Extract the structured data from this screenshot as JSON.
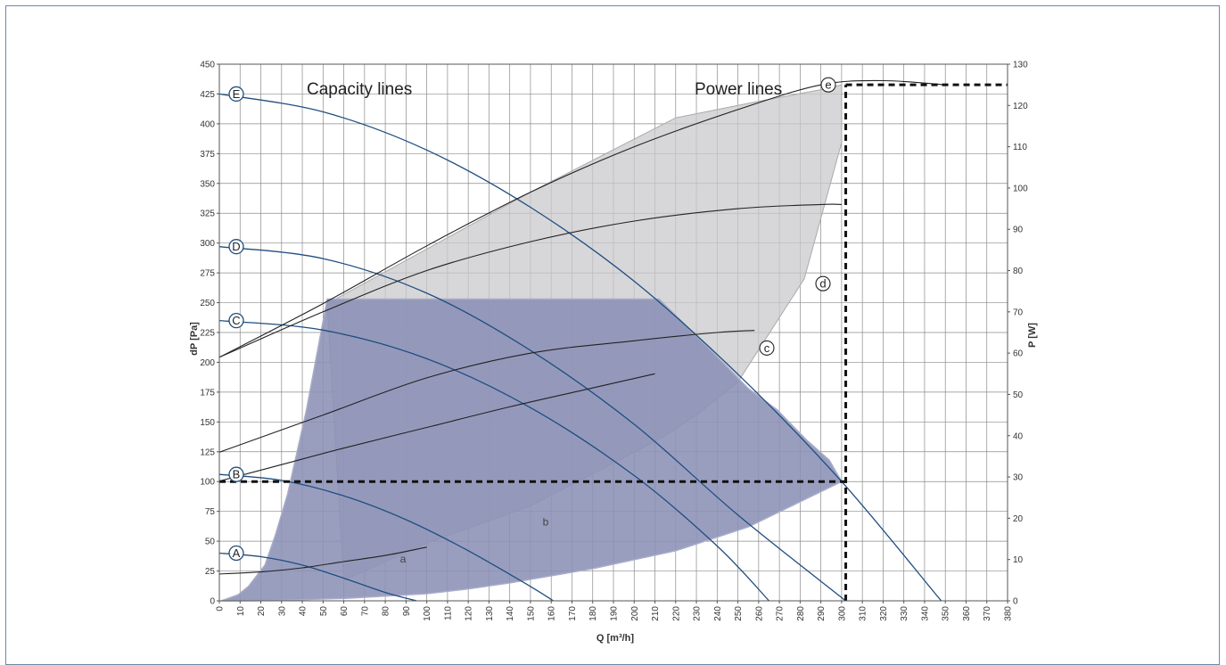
{
  "chart_data": {
    "type": "line",
    "title": "",
    "xlabel": "Q [m³/h]",
    "ylabel": "dP [Pa]",
    "y2label": "P [W]",
    "xlim": [
      0,
      380
    ],
    "ylim": [
      0,
      450
    ],
    "y2lim": [
      0,
      130
    ],
    "x_ticks": [
      0,
      10,
      20,
      30,
      40,
      50,
      60,
      70,
      80,
      90,
      100,
      110,
      120,
      130,
      140,
      150,
      160,
      170,
      180,
      190,
      200,
      210,
      220,
      230,
      240,
      250,
      260,
      270,
      280,
      290,
      300,
      310,
      320,
      330,
      340,
      350,
      360,
      370,
      380
    ],
    "y_ticks": [
      0,
      25,
      50,
      75,
      100,
      125,
      150,
      175,
      200,
      225,
      250,
      275,
      300,
      325,
      350,
      375,
      400,
      425,
      450
    ],
    "y2_ticks": [
      0,
      10,
      20,
      30,
      40,
      50,
      60,
      70,
      80,
      90,
      100,
      110,
      120,
      130
    ],
    "grid": true,
    "section_titles": {
      "capacity": "Capacity  lines",
      "power": "Power lines"
    },
    "capacity_series": [
      {
        "name": "A",
        "x": [
          0,
          20,
          40,
          60,
          80,
          95
        ],
        "y": [
          40,
          37,
          30,
          19,
          7,
          0
        ]
      },
      {
        "name": "B",
        "x": [
          0,
          30,
          60,
          90,
          120,
          150,
          161
        ],
        "y": [
          106,
          101,
          88,
          68,
          42,
          12,
          0
        ]
      },
      {
        "name": "C",
        "x": [
          0,
          50,
          100,
          150,
          200,
          240,
          265
        ],
        "y": [
          235,
          227,
          203,
          162,
          105,
          46,
          0
        ]
      },
      {
        "name": "D",
        "x": [
          0,
          50,
          100,
          150,
          200,
          250,
          302
        ],
        "y": [
          297,
          287,
          258,
          210,
          148,
          72,
          0
        ]
      },
      {
        "name": "E",
        "x": [
          0,
          50,
          100,
          150,
          200,
          250,
          300,
          348
        ],
        "y": [
          425,
          410,
          378,
          330,
          268,
          190,
          100,
          0
        ]
      }
    ],
    "power_series": [
      {
        "name": "a",
        "x": [
          0,
          20,
          40,
          60,
          80,
          100
        ],
        "y": [
          6.5,
          7,
          8,
          9.5,
          11,
          13
        ]
      },
      {
        "name": "b",
        "x": [
          0,
          30,
          60,
          100,
          140,
          175,
          210
        ],
        "y": [
          29,
          33,
          37,
          42,
          47,
          51,
          55
        ]
      },
      {
        "name": "c",
        "x": [
          0,
          50,
          100,
          150,
          200,
          240,
          258
        ],
        "y": [
          36,
          45,
          54,
          60,
          63,
          65,
          65.5
        ]
      },
      {
        "name": "d",
        "x": [
          0,
          50,
          100,
          150,
          200,
          250,
          290,
          300
        ],
        "y": [
          59,
          70,
          80,
          87,
          92,
          95,
          96,
          96
        ]
      },
      {
        "name": "e",
        "x": [
          0,
          50,
          100,
          150,
          200,
          250,
          290,
          320,
          350
        ],
        "y": [
          59,
          72,
          86,
          99,
          110,
          119,
          125,
          126,
          125
        ]
      }
    ],
    "capacity_labels": [
      "A",
      "B",
      "C",
      "D",
      "E"
    ],
    "power_labels": [
      "a",
      "b",
      "c",
      "d",
      "e"
    ],
    "operating_area": {
      "x": [
        1,
        9,
        14,
        22,
        27,
        33,
        42,
        52,
        212,
        237,
        255,
        269,
        283,
        294,
        300,
        300,
        255,
        220,
        180,
        140,
        120,
        100,
        60,
        25,
        5
      ],
      "y": [
        0,
        5,
        12,
        30,
        55,
        90,
        160,
        253,
        253,
        210,
        178,
        160,
        135,
        118,
        100,
        100,
        62,
        42,
        27,
        15,
        10,
        6,
        2,
        0.2,
        0
      ]
    },
    "power_area": {
      "x": [
        52,
        150,
        220,
        260,
        292,
        300,
        300,
        282,
        250,
        230,
        215,
        200,
        150,
        100,
        60,
        52
      ],
      "y": [
        72,
        99,
        117,
        121,
        124,
        125,
        111,
        78,
        53,
        45,
        40,
        36,
        23,
        14,
        5,
        72
      ]
    },
    "reference_lines": {
      "operating_point_dp": {
        "x": [
          0,
          302
        ],
        "y": [
          100,
          100
        ]
      },
      "operating_point_q": {
        "x": [
          302,
          302
        ],
        "y": [
          0,
          125
        ]
      },
      "power_ref": {
        "x": [
          302,
          380
        ],
        "y": [
          125,
          125
        ]
      }
    }
  }
}
